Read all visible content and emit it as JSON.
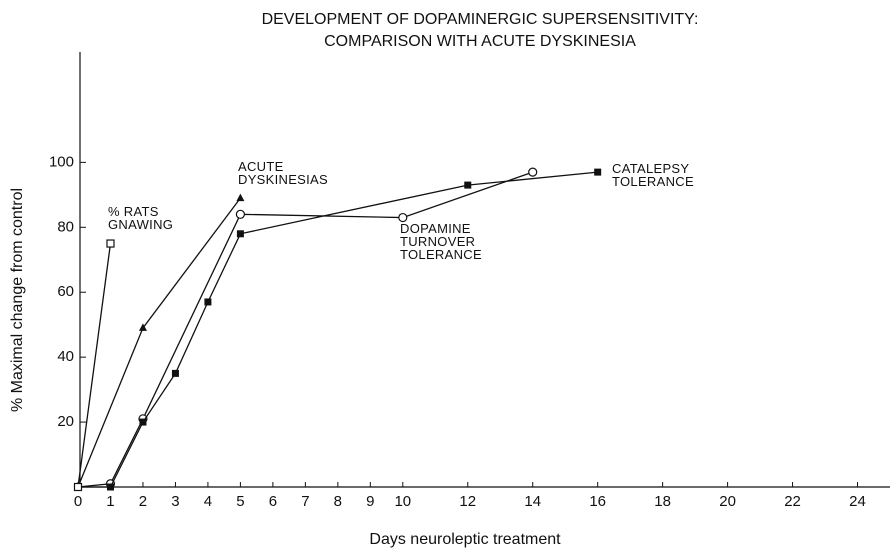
{
  "chart_data": {
    "type": "line",
    "title": "DEVELOPMENT OF DOPAMINERGIC SUPERSENSITIVITY:",
    "subtitle": "COMPARISON WITH ACUTE DYSKINESIA",
    "x_label": "Days neuroleptic treatment",
    "y_label": "% Maximal change from control",
    "xlim": [
      0,
      25
    ],
    "ylim": [
      0,
      134
    ],
    "xticks": [
      0,
      1,
      2,
      3,
      4,
      5,
      6,
      7,
      8,
      9,
      10,
      12,
      14,
      16,
      18,
      20,
      22,
      24
    ],
    "yticks": [
      20,
      40,
      60,
      80,
      100
    ],
    "series": [
      {
        "name": "% RATS\nGNAWING",
        "color": "#111111",
        "marker": "square-open",
        "x": [
          0,
          1
        ],
        "values": [
          0,
          75
        ]
      },
      {
        "name": "ACUTE\nDYSKINESIAS",
        "color": "#111111",
        "marker": "triangle",
        "x": [
          0,
          2,
          5
        ],
        "values": [
          0,
          49,
          89
        ]
      },
      {
        "name": "DOPAMINE\nTURNOVER\nTOLERANCE",
        "color": "#111111",
        "marker": "circle-open",
        "x": [
          0,
          1,
          2,
          5,
          10,
          14
        ],
        "values": [
          0,
          1,
          21,
          84,
          83,
          97
        ]
      },
      {
        "name": "CATALEPSY\nTOLERANCE",
        "color": "#111111",
        "marker": "square",
        "x": [
          0,
          1,
          2,
          3,
          4,
          5,
          12,
          16
        ],
        "values": [
          0,
          0,
          20,
          35,
          57,
          78,
          93,
          97
        ]
      }
    ]
  }
}
